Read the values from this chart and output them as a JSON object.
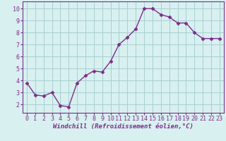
{
  "x": [
    0,
    1,
    2,
    3,
    4,
    5,
    6,
    7,
    8,
    9,
    10,
    11,
    12,
    13,
    14,
    15,
    16,
    17,
    18,
    19,
    20,
    21,
    22,
    23
  ],
  "y": [
    3.8,
    2.8,
    2.7,
    3.0,
    1.9,
    1.8,
    3.8,
    4.4,
    4.8,
    4.7,
    5.6,
    7.0,
    7.6,
    8.3,
    10.0,
    10.0,
    9.5,
    9.3,
    8.8,
    8.8,
    8.0,
    7.5,
    7.5,
    7.5
  ],
  "line_color": "#7b2d8b",
  "marker": "D",
  "marker_size": 2.5,
  "bg_color": "#d8f0f0",
  "grid_color": "#a8d0d0",
  "xlabel": "Windchill (Refroidissement éolien,°C)",
  "xlim": [
    -0.5,
    23.5
  ],
  "ylim": [
    1.3,
    10.6
  ],
  "yticks": [
    2,
    3,
    4,
    5,
    6,
    7,
    8,
    9,
    10
  ],
  "xticks": [
    0,
    1,
    2,
    3,
    4,
    5,
    6,
    7,
    8,
    9,
    10,
    11,
    12,
    13,
    14,
    15,
    16,
    17,
    18,
    19,
    20,
    21,
    22,
    23
  ],
  "line_width": 1.0,
  "xlabel_fontsize": 6.5,
  "tick_fontsize": 6.0,
  "marker_color": "#7b2d8b",
  "spine_color": "#7b2d8b",
  "tick_color": "#7b2d8b"
}
